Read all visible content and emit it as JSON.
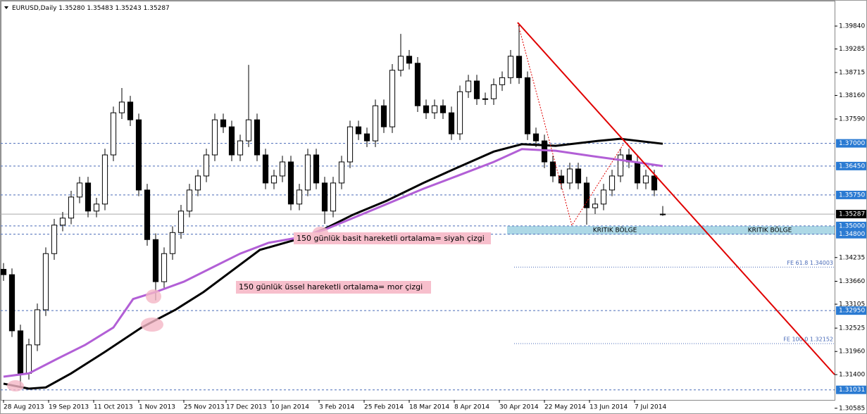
{
  "chart_data": {
    "type": "candlestick",
    "title": "EURUSD,Daily",
    "header_prices": [
      "1.35280",
      "1.35483",
      "1.35243",
      "1.35287"
    ],
    "x": [
      0,
      3,
      6,
      9,
      12,
      15,
      18,
      21,
      24,
      27,
      30,
      33,
      36,
      39,
      42,
      45,
      48,
      51,
      54,
      57,
      60,
      63,
      66,
      69,
      72,
      75,
      78,
      81,
      84,
      87,
      90,
      93,
      96,
      99,
      102,
      105,
      108,
      111,
      114,
      117,
      120,
      123,
      126,
      129,
      132,
      135,
      138,
      141,
      144,
      147,
      150,
      153,
      156,
      159,
      162,
      165,
      168,
      171,
      174,
      177,
      180,
      183,
      186,
      189,
      192,
      195,
      198,
      201,
      204,
      207,
      210,
      213,
      216,
      219,
      222,
      225,
      228,
      231,
      234
    ],
    "open": [
      1.3395,
      1.3382,
      1.3246,
      1.3143,
      1.3212,
      1.3297,
      1.3433,
      1.3502,
      1.3519,
      1.357,
      1.3604,
      1.3536,
      1.3553,
      1.3672,
      1.3774,
      1.38,
      1.3757,
      1.3587,
      1.3467,
      1.3365,
      1.3433,
      1.3484,
      1.3536,
      1.3587,
      1.3621,
      1.3672,
      1.3757,
      1.374,
      1.3672,
      1.3706,
      1.3757,
      1.3672,
      1.3604,
      1.3621,
      1.3655,
      1.3553,
      1.3587,
      1.3672,
      1.3604,
      1.3536,
      1.3604,
      1.3655,
      1.374,
      1.3723,
      1.3706,
      1.3791,
      1.374,
      1.3877,
      1.3911,
      1.3894,
      1.3791,
      1.3774,
      1.3791,
      1.3774,
      1.3723,
      1.3825,
      1.3851,
      1.3808,
      1.3808,
      1.3842,
      1.3859,
      1.3911,
      1.3859,
      1.3723,
      1.3706,
      1.3655,
      1.3621,
      1.3604,
      1.3638,
      1.3604,
      1.3544,
      1.3553,
      1.3587,
      1.3621,
      1.3672,
      1.3655,
      1.3604,
      1.3621,
      1.3528
    ],
    "high": [
      1.341,
      1.3397,
      1.3261,
      1.3227,
      1.3312,
      1.3448,
      1.3517,
      1.3534,
      1.3585,
      1.3619,
      1.3619,
      1.3568,
      1.3687,
      1.3789,
      1.3834,
      1.3815,
      1.3772,
      1.3602,
      1.3482,
      1.3448,
      1.3499,
      1.3551,
      1.3602,
      1.3636,
      1.3687,
      1.3772,
      1.3772,
      1.3755,
      1.3721,
      1.389,
      1.3772,
      1.3687,
      1.3636,
      1.367,
      1.367,
      1.3602,
      1.3687,
      1.3687,
      1.3619,
      1.3619,
      1.367,
      1.3755,
      1.3755,
      1.3738,
      1.3806,
      1.3806,
      1.3892,
      1.3965,
      1.3926,
      1.3909,
      1.3806,
      1.3806,
      1.3806,
      1.3789,
      1.384,
      1.3866,
      1.3866,
      1.3823,
      1.3857,
      1.3874,
      1.3926,
      1.399,
      1.3874,
      1.3738,
      1.3721,
      1.367,
      1.3636,
      1.3653,
      1.3653,
      1.3619,
      1.3568,
      1.3602,
      1.3636,
      1.3687,
      1.3687,
      1.367,
      1.3636,
      1.3636,
      1.35483
    ],
    "low": [
      1.3367,
      1.3231,
      1.311,
      1.3128,
      1.3197,
      1.3282,
      1.3418,
      1.3487,
      1.3504,
      1.3555,
      1.3521,
      1.3521,
      1.3538,
      1.3657,
      1.3759,
      1.3742,
      1.3572,
      1.3452,
      1.332,
      1.335,
      1.3418,
      1.3469,
      1.3521,
      1.3572,
      1.3606,
      1.3657,
      1.3725,
      1.3657,
      1.3657,
      1.3691,
      1.3657,
      1.3589,
      1.3589,
      1.3606,
      1.3538,
      1.3538,
      1.3572,
      1.3589,
      1.3505,
      1.3521,
      1.3589,
      1.364,
      1.3708,
      1.3691,
      1.3691,
      1.3725,
      1.3725,
      1.3862,
      1.3879,
      1.3776,
      1.3759,
      1.3759,
      1.3759,
      1.3708,
      1.3708,
      1.381,
      1.3793,
      1.3793,
      1.3793,
      1.3827,
      1.3844,
      1.3844,
      1.3708,
      1.3691,
      1.364,
      1.3606,
      1.3589,
      1.3589,
      1.3589,
      1.3503,
      1.3529,
      1.3538,
      1.3572,
      1.3606,
      1.364,
      1.3589,
      1.3589,
      1.3572,
      1.35243
    ],
    "close": [
      1.3382,
      1.3246,
      1.3143,
      1.3212,
      1.3297,
      1.3433,
      1.3502,
      1.3519,
      1.357,
      1.3604,
      1.3536,
      1.3553,
      1.3672,
      1.3774,
      1.38,
      1.3757,
      1.3587,
      1.3467,
      1.3365,
      1.3433,
      1.3484,
      1.3536,
      1.3587,
      1.3621,
      1.3672,
      1.3757,
      1.374,
      1.3672,
      1.3706,
      1.3757,
      1.3672,
      1.3604,
      1.3621,
      1.3655,
      1.3553,
      1.3587,
      1.3672,
      1.3604,
      1.3536,
      1.3604,
      1.3655,
      1.374,
      1.3723,
      1.3706,
      1.3791,
      1.374,
      1.3877,
      1.3911,
      1.3894,
      1.3791,
      1.3774,
      1.3791,
      1.3774,
      1.3723,
      1.3825,
      1.3851,
      1.3808,
      1.3808,
      1.3842,
      1.3859,
      1.3911,
      1.3859,
      1.3723,
      1.3706,
      1.3655,
      1.3621,
      1.3604,
      1.3638,
      1.3604,
      1.3544,
      1.3553,
      1.3587,
      1.3621,
      1.3672,
      1.3655,
      1.3604,
      1.3621,
      1.3587,
      1.35287
    ],
    "lines": [
      {
        "color": "#000000",
        "x": [
          0,
          9,
          15,
          24,
          36,
          49,
          61,
          71,
          81,
          91,
          104,
          114,
          124,
          136,
          149,
          161,
          174,
          184,
          196,
          211,
          219,
          234
        ],
        "values": [
          1.3118,
          1.3106,
          1.3109,
          1.3143,
          1.3195,
          1.3254,
          1.3297,
          1.334,
          1.3391,
          1.3442,
          1.3467,
          1.3493,
          1.3527,
          1.3561,
          1.3604,
          1.3641,
          1.368,
          1.3698,
          1.3694,
          1.3706,
          1.3711,
          1.3699
        ]
      },
      {
        "color": "#b25fd6",
        "x": [
          0,
          9,
          19,
          29,
          39,
          46,
          54,
          64,
          74,
          84,
          94,
          104,
          114,
          124,
          136,
          149,
          161,
          174,
          184,
          196,
          209,
          224,
          234
        ],
        "values": [
          1.3135,
          1.3143,
          1.3178,
          1.3212,
          1.3254,
          1.3323,
          1.334,
          1.3365,
          1.3399,
          1.3433,
          1.3459,
          1.3471,
          1.3491,
          1.3519,
          1.3553,
          1.359,
          1.3621,
          1.3655,
          1.3686,
          1.3682,
          1.3669,
          1.3655,
          1.3645
        ]
      }
    ],
    "xlim": [
      -1,
      295
    ],
    "ylim": [
      1.30787,
      1.40386
    ],
    "xticks": [
      {
        "value": 0,
        "label": "28 Aug 2013"
      },
      {
        "value": 16,
        "label": "19 Sep 2013"
      },
      {
        "value": 32,
        "label": "11 Oct 2013"
      },
      {
        "value": 48,
        "label": "1 Nov 2013"
      },
      {
        "value": 64,
        "label": "25 Nov 2013"
      },
      {
        "value": 79,
        "label": "17 Dec 2013"
      },
      {
        "value": 95,
        "label": "10 Jan 2014"
      },
      {
        "value": 112,
        "label": "3 Feb 2014"
      },
      {
        "value": 128,
        "label": "25 Feb 2014"
      },
      {
        "value": 144,
        "label": "18 Mar 2014"
      },
      {
        "value": 160,
        "label": "8 Apr 2014"
      },
      {
        "value": 176,
        "label": "30 Apr 2014"
      },
      {
        "value": 192,
        "label": "22 May 2014"
      },
      {
        "value": 208,
        "label": "13 Jun 2014"
      },
      {
        "value": 224,
        "label": "7 Jul 2014"
      }
    ],
    "yticks": [
      {
        "value": 1.3984,
        "label": "1.39840"
      },
      {
        "value": 1.39285,
        "label": "1.39285"
      },
      {
        "value": 1.38715,
        "label": "1.38715"
      },
      {
        "value": 1.3816,
        "label": "1.38160"
      },
      {
        "value": 1.3759,
        "label": "1.37590"
      },
      {
        "value": 1.34235,
        "label": "1.34235"
      },
      {
        "value": 1.3366,
        "label": "1.33660"
      },
      {
        "value": 1.33105,
        "label": "1.33105"
      },
      {
        "value": 1.32525,
        "label": "1.32525"
      },
      {
        "value": 1.3196,
        "label": "1.31960"
      },
      {
        "value": 1.314,
        "label": "1.31400"
      },
      {
        "value": 1.30585,
        "label": "1.30585"
      }
    ],
    "levels": [
      {
        "value": 1.37,
        "label": "1.37000"
      },
      {
        "value": 1.3645,
        "label": "1.36450"
      },
      {
        "value": 1.3575,
        "label": "1.35750"
      },
      {
        "value": 1.35,
        "label": "1.35000"
      },
      {
        "value": 1.348,
        "label": "1.34800"
      },
      {
        "value": 1.3295,
        "label": "1.32950"
      },
      {
        "value": 1.31031,
        "label": "1.31031"
      }
    ],
    "current": {
      "value": 1.35287,
      "label": "1.35287"
    },
    "fib_levels": [
      {
        "value": 1.34003,
        "label": "FE 61.8 1.34003"
      },
      {
        "value": 1.32152,
        "label": "FE 100.0 1.32152"
      }
    ],
    "zone_labels": [
      "KRITIK BÖLGE",
      "KRITIK BÖLGE"
    ],
    "annotations": [
      "150 günlük basit hareketli ortalama= siyah çizgi",
      "150 günlük üssel hareketli ortalama= mor çizgi"
    ]
  }
}
